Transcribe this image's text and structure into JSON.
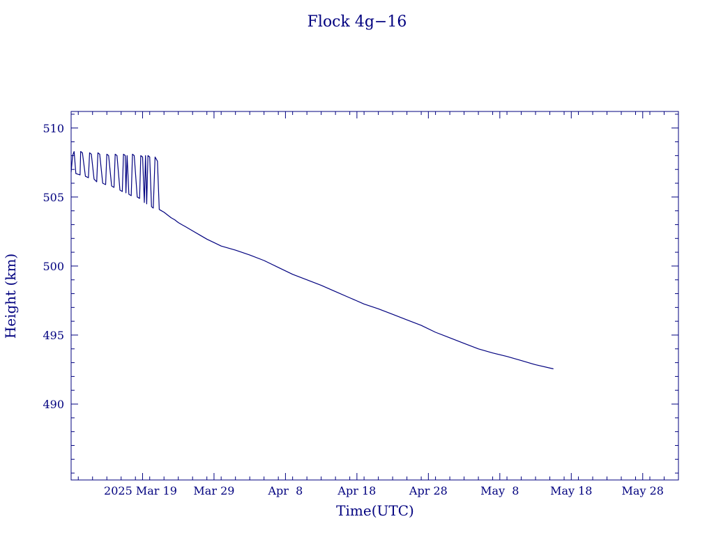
{
  "chart_data": {
    "type": "line",
    "title": "Flock 4g−16",
    "xlabel": "Time(UTC)",
    "ylabel": "Height (km)",
    "color": "#00007f",
    "x_axis": {
      "type": "date",
      "range": [
        "2025-03-09",
        "2025-06-02"
      ],
      "tick_labels": [
        "2025 Mar 19",
        "Mar 29",
        "Apr  8",
        "Apr 18",
        "Apr 28",
        "May  8",
        "May 18",
        "May 28"
      ],
      "tick_dates": [
        "2025-03-19",
        "2025-03-29",
        "2025-04-08",
        "2025-04-18",
        "2025-04-28",
        "2025-05-08",
        "2025-05-18",
        "2025-05-28"
      ]
    },
    "y_axis": {
      "range": [
        484.5,
        511.2
      ],
      "tick_values": [
        490,
        495,
        500,
        505,
        510
      ],
      "tick_labels": [
        "490",
        "495",
        "500",
        "505",
        "510"
      ]
    },
    "series": [
      {
        "points": [
          [
            "2025-03-09T00:00",
            506.8
          ],
          [
            "2025-03-09T05:00",
            508.0
          ],
          [
            "2025-03-09T10:00",
            508.3
          ],
          [
            "2025-03-09T16:00",
            506.7
          ],
          [
            "2025-03-10T06:00",
            506.6
          ],
          [
            "2025-03-10T08:00",
            508.3
          ],
          [
            "2025-03-10T14:00",
            508.2
          ],
          [
            "2025-03-11T00:00",
            506.5
          ],
          [
            "2025-03-11T10:00",
            506.4
          ],
          [
            "2025-03-11T14:00",
            508.2
          ],
          [
            "2025-03-11T20:00",
            508.1
          ],
          [
            "2025-03-12T05:00",
            506.3
          ],
          [
            "2025-03-12T14:00",
            506.1
          ],
          [
            "2025-03-12T18:00",
            508.2
          ],
          [
            "2025-03-13T00:00",
            508.1
          ],
          [
            "2025-03-13T10:00",
            506.0
          ],
          [
            "2025-03-13T20:00",
            505.9
          ],
          [
            "2025-03-14T00:00",
            508.1
          ],
          [
            "2025-03-14T06:00",
            508.0
          ],
          [
            "2025-03-14T16:00",
            505.8
          ],
          [
            "2025-03-15T00:00",
            505.7
          ],
          [
            "2025-03-15T04:00",
            508.1
          ],
          [
            "2025-03-15T10:00",
            508.0
          ],
          [
            "2025-03-15T20:00",
            505.5
          ],
          [
            "2025-03-16T04:00",
            505.4
          ],
          [
            "2025-03-16T08:00",
            508.1
          ],
          [
            "2025-03-16T14:00",
            508.0
          ],
          [
            "2025-03-16T16:00",
            505.3
          ],
          [
            "2025-03-16T20:00",
            508.0
          ],
          [
            "2025-03-17T02:00",
            505.2
          ],
          [
            "2025-03-17T10:00",
            505.1
          ],
          [
            "2025-03-17T14:00",
            508.1
          ],
          [
            "2025-03-17T20:00",
            508.0
          ],
          [
            "2025-03-18T06:00",
            505.0
          ],
          [
            "2025-03-18T14:00",
            504.9
          ],
          [
            "2025-03-18T18:00",
            508.0
          ],
          [
            "2025-03-19T00:00",
            507.9
          ],
          [
            "2025-03-19T06:00",
            504.6
          ],
          [
            "2025-03-19T10:00",
            508.0
          ],
          [
            "2025-03-19T14:00",
            504.5
          ],
          [
            "2025-03-19T18:00",
            508.0
          ],
          [
            "2025-03-20T00:00",
            507.9
          ],
          [
            "2025-03-20T06:00",
            504.3
          ],
          [
            "2025-03-20T12:00",
            504.2
          ],
          [
            "2025-03-20T18:00",
            507.9
          ],
          [
            "2025-03-21T02:00",
            507.6
          ],
          [
            "2025-03-21T08:00",
            504.1
          ],
          [
            "2025-03-21T16:00",
            504.0
          ],
          [
            "2025-03-22T00:00",
            503.9
          ],
          [
            "2025-03-22T12:00",
            503.7
          ],
          [
            "2025-03-23T00:00",
            503.5
          ],
          [
            "2025-03-23T12:00",
            503.35
          ],
          [
            "2025-03-24T00:00",
            503.15
          ],
          [
            "2025-03-24T12:00",
            503.0
          ],
          [
            "2025-03-25T00:00",
            502.85
          ],
          [
            "2025-03-26T00:00",
            502.55
          ],
          [
            "2025-03-27T00:00",
            502.25
          ],
          [
            "2025-03-28T00:00",
            501.95
          ],
          [
            "2025-03-29T00:00",
            501.7
          ],
          [
            "2025-03-30T00:00",
            501.45
          ],
          [
            "2025-04-01T00:00",
            501.15
          ],
          [
            "2025-04-03T00:00",
            500.8
          ],
          [
            "2025-04-05T00:00",
            500.4
          ],
          [
            "2025-04-07T00:00",
            499.9
          ],
          [
            "2025-04-09T00:00",
            499.4
          ],
          [
            "2025-04-11T00:00",
            499.0
          ],
          [
            "2025-04-13T00:00",
            498.6
          ],
          [
            "2025-04-15T00:00",
            498.15
          ],
          [
            "2025-04-17T00:00",
            497.7
          ],
          [
            "2025-04-19T00:00",
            497.25
          ],
          [
            "2025-04-21T00:00",
            496.9
          ],
          [
            "2025-04-23T00:00",
            496.5
          ],
          [
            "2025-04-25T00:00",
            496.1
          ],
          [
            "2025-04-27T00:00",
            495.7
          ],
          [
            "2025-04-29T00:00",
            495.2
          ],
          [
            "2025-05-01T00:00",
            494.8
          ],
          [
            "2025-05-03T00:00",
            494.4
          ],
          [
            "2025-05-05T00:00",
            494.0
          ],
          [
            "2025-05-07T00:00",
            493.7
          ],
          [
            "2025-05-09T00:00",
            493.45
          ],
          [
            "2025-05-11T00:00",
            493.15
          ],
          [
            "2025-05-13T00:00",
            492.85
          ],
          [
            "2025-05-15T12:00",
            492.55
          ]
        ]
      }
    ]
  }
}
